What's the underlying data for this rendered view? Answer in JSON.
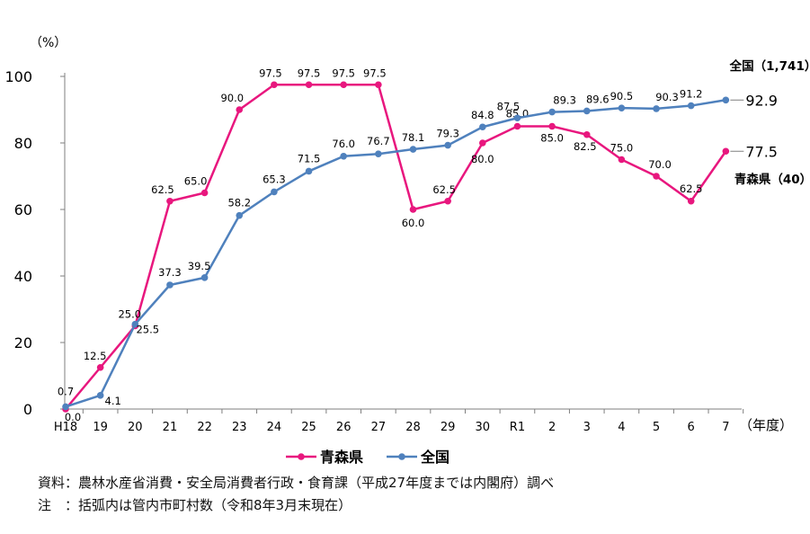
{
  "chart_data": {
    "type": "line",
    "y_unit": "（%）",
    "x_unit": "（年度）",
    "ylim": [
      0,
      100
    ],
    "yticks": [
      "0",
      "20",
      "40",
      "60",
      "80",
      "100"
    ],
    "grid": false,
    "legend_placement": "bottom-center",
    "categories": [
      "H18",
      "19",
      "20",
      "21",
      "22",
      "23",
      "24",
      "25",
      "26",
      "27",
      "28",
      "29",
      "30",
      "R1",
      "2",
      "3",
      "4",
      "5",
      "6",
      "7"
    ],
    "series": [
      {
        "name": "青森県",
        "color": "#e8177e",
        "values": [
          0.0,
          12.5,
          25.0,
          62.5,
          65.0,
          90.0,
          97.5,
          97.5,
          97.5,
          97.5,
          60.0,
          62.5,
          80.0,
          85.0,
          85.0,
          82.5,
          75.0,
          70.0,
          62.5,
          77.5
        ],
        "labels": [
          "0.0",
          "12.5",
          "25.0",
          "62.5",
          "65.0",
          "90.0",
          "97.5",
          "97.5",
          "97.5",
          "97.5",
          "60.0",
          "62.5",
          "80.0",
          "85.0",
          "85.0",
          "82.5",
          "75.0",
          "70.0",
          "62.5",
          "77.5"
        ],
        "end_label": "青森県（40）"
      },
      {
        "name": "全国",
        "color": "#4f81bd",
        "values": [
          0.7,
          4.1,
          25.5,
          37.3,
          39.5,
          58.2,
          65.3,
          71.5,
          76.0,
          76.7,
          78.1,
          79.3,
          84.8,
          87.5,
          89.3,
          89.6,
          90.5,
          90.3,
          91.2,
          92.9
        ],
        "labels": [
          "0.7",
          "4.1",
          "25.5",
          "37.3",
          "39.5",
          "58.2",
          "65.3",
          "71.5",
          "76.0",
          "76.7",
          "78.1",
          "79.3",
          "84.8",
          "87.5",
          "89.3",
          "89.6",
          "90.5",
          "90.3",
          "91.2",
          "92.9"
        ],
        "end_label": "全国（1,741）"
      }
    ]
  },
  "notes": {
    "source": "資料：農林水産省消費・安全局消費者行政・食育課（平成27年度までは内閣府）調べ",
    "note": "注　：括弧内は管内市町村数（令和8年3月末現在）"
  }
}
